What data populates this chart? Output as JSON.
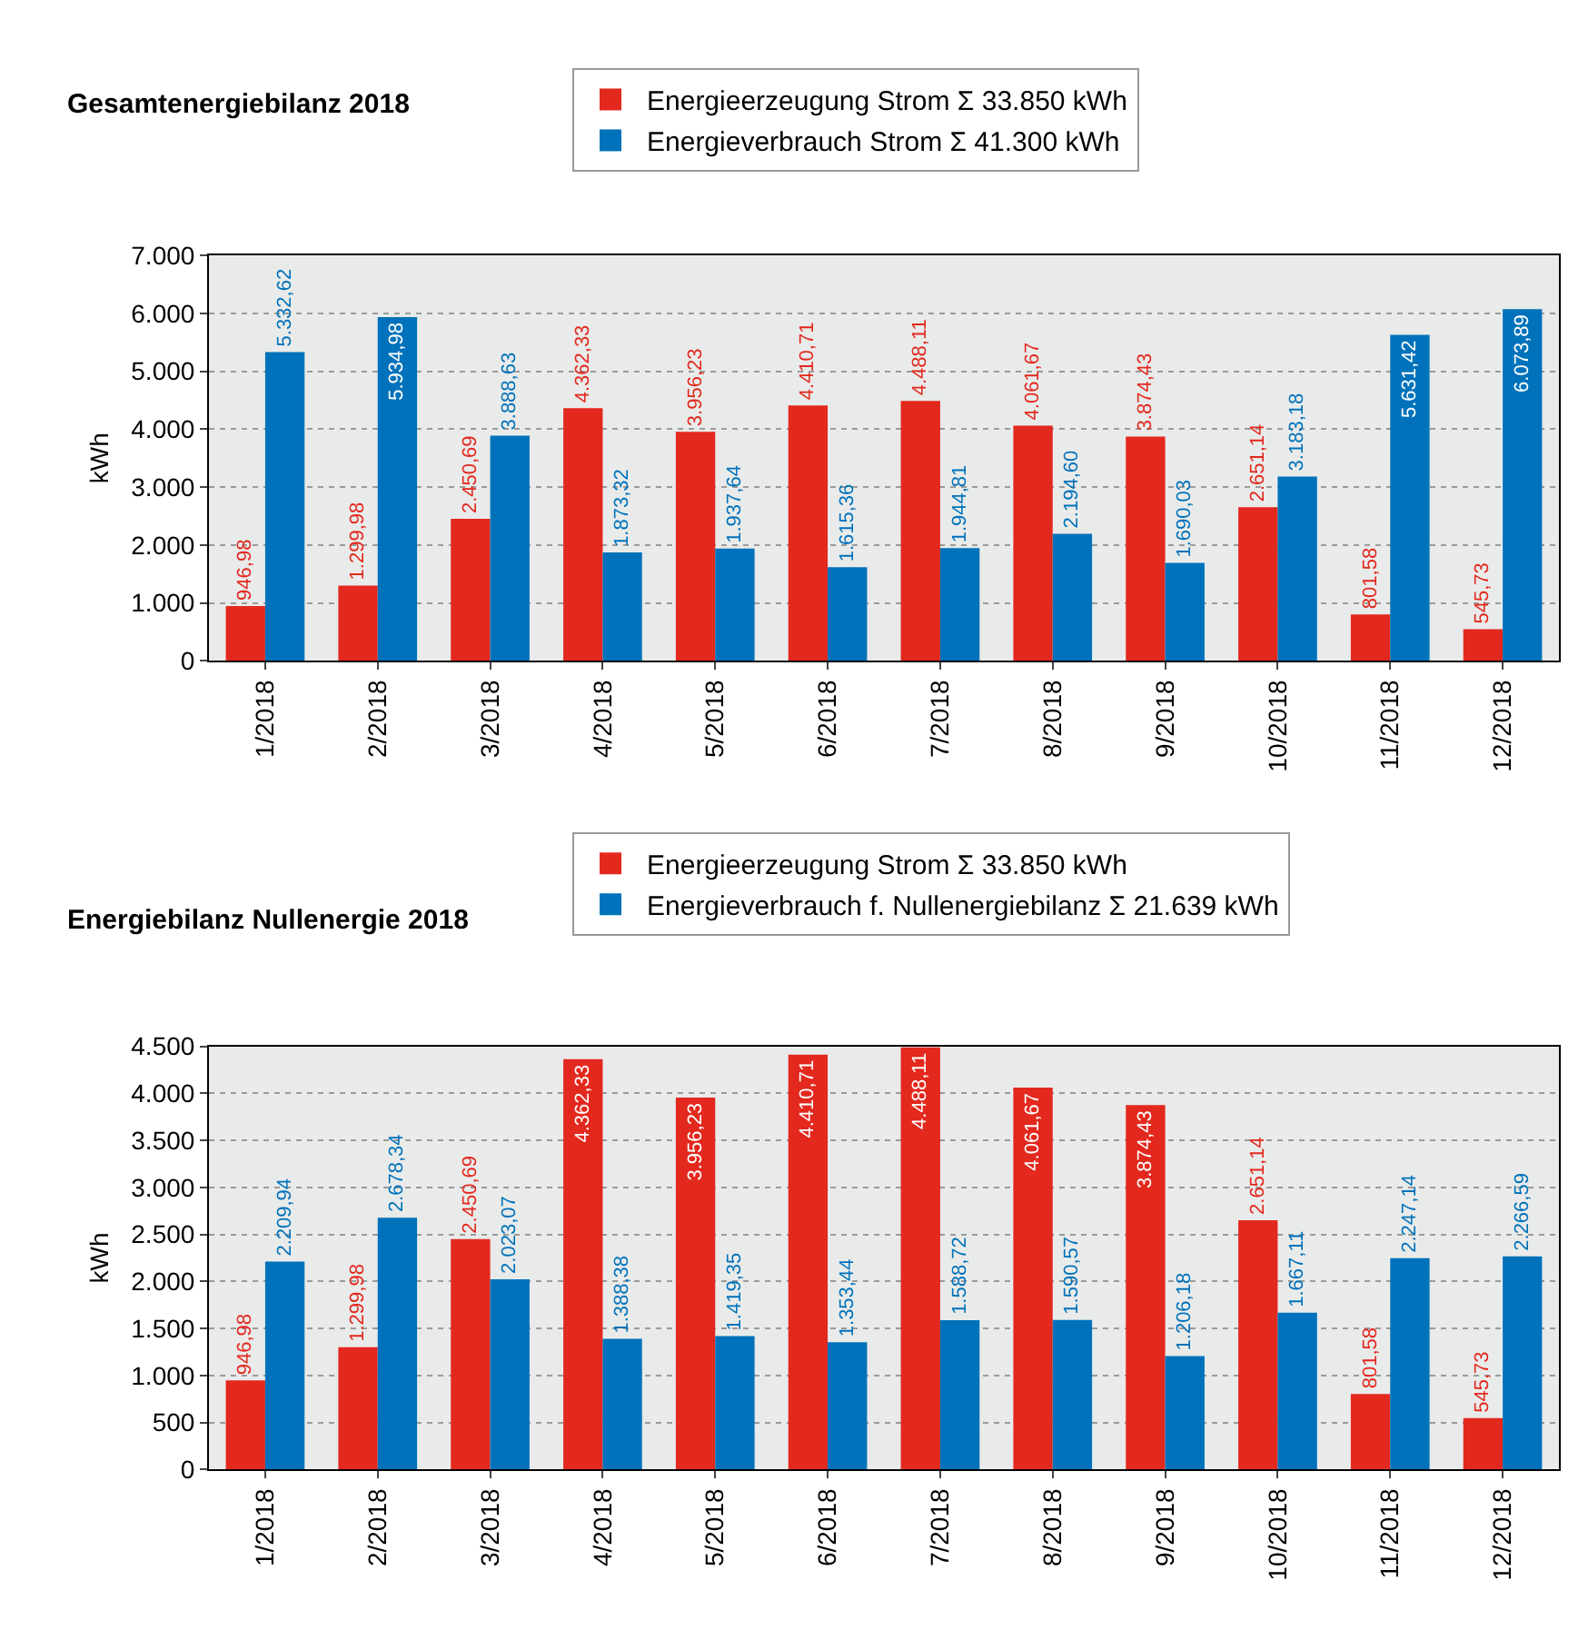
{
  "chart_data": [
    {
      "type": "bar",
      "title": "Gesamtenergiebilanz 2018",
      "ylabel": "kWh",
      "categories": [
        "1/2018",
        "2/2018",
        "3/2018",
        "4/2018",
        "5/2018",
        "6/2018",
        "7/2018",
        "8/2018",
        "9/2018",
        "10/2018",
        "11/2018",
        "12/2018"
      ],
      "series": [
        {
          "name": "Energieerzeugung Strom Σ 33.850 kWh",
          "color": "#e3281e",
          "values": [
            946.98,
            1299.98,
            2450.69,
            4362.33,
            3956.23,
            4410.71,
            4488.11,
            4061.67,
            3874.43,
            2651.14,
            801.58,
            545.73
          ],
          "value_labels": [
            "946,98",
            "1.299,98",
            "2.450,69",
            "4.362,33",
            "3.956,23",
            "4.410,71",
            "4.488,11",
            "4.061,67",
            "3.874,43",
            "2.651,14",
            "801,58",
            "545,73"
          ]
        },
        {
          "name": "Energieverbrauch Strom Σ 41.300 kWh",
          "color": "#0072bb",
          "values": [
            5332.62,
            5934.98,
            3888.63,
            1873.32,
            1937.64,
            1615.36,
            1944.81,
            2194.6,
            1690.03,
            3183.18,
            5631.42,
            6073.89
          ],
          "value_labels": [
            "5.332,62",
            "5.934,98",
            "3.888,63",
            "1.873,32",
            "1.937,64",
            "1.615,36",
            "1.944,81",
            "2.194,60",
            "1.690,03",
            "3.183,18",
            "5.631,42",
            "6.073,89"
          ]
        }
      ],
      "ylim": [
        0,
        7000
      ],
      "yticks": [
        0,
        {
          "value": 1000,
          "label": "1.000"
        },
        {
          "value": 2000,
          "label": "2.000"
        },
        {
          "value": 3000,
          "label": "3.000"
        },
        {
          "value": 4000,
          "label": "4.000"
        },
        {
          "value": 5000,
          "label": "5.000"
        },
        {
          "value": 6000,
          "label": "6.000"
        },
        {
          "value": 7000,
          "label": "7.000"
        }
      ],
      "grid": "y",
      "legend": "top"
    },
    {
      "type": "bar",
      "title": "Energiebilanz Nullenergie 2018",
      "ylabel": "kWh",
      "categories": [
        "1/2018",
        "2/2018",
        "3/2018",
        "4/2018",
        "5/2018",
        "6/2018",
        "7/2018",
        "8/2018",
        "9/2018",
        "10/2018",
        "11/2018",
        "12/2018"
      ],
      "series": [
        {
          "name": "Energieerzeugung Strom Σ 33.850 kWh",
          "color": "#e3281e",
          "values": [
            946.98,
            1299.98,
            2450.69,
            4362.33,
            3956.23,
            4410.71,
            4488.11,
            4061.67,
            3874.43,
            2651.14,
            801.58,
            545.73
          ],
          "value_labels": [
            "946,98",
            "1.299,98",
            "2.450,69",
            "4.362,33",
            "3.956,23",
            "4.410,71",
            "4.488,11",
            "4.061,67",
            "3.874,43",
            "2.651,14",
            "801,58",
            "545,73"
          ]
        },
        {
          "name": "Energieverbrauch f. Nullenergiebilanz Σ 21.639 kWh",
          "color": "#0072bb",
          "values": [
            2209.94,
            2678.34,
            2023.07,
            1388.38,
            1419.35,
            1353.44,
            1588.72,
            1590.57,
            1206.18,
            1667.11,
            2247.14,
            2266.59
          ],
          "value_labels": [
            "2.209,94",
            "2.678,34",
            "2.023,07",
            "1.388,38",
            "1.419,35",
            "1.353,44",
            "1.588,72",
            "1.590,57",
            "1.206,18",
            "1.667,11",
            "2.247,14",
            "2.266,59"
          ]
        }
      ],
      "ylim": [
        0,
        4500
      ],
      "yticks": [
        0,
        500,
        {
          "value": 1000,
          "label": "1.000"
        },
        {
          "value": 1500,
          "label": "1.500"
        },
        {
          "value": 2000,
          "label": "2.000"
        },
        {
          "value": 2500,
          "label": "2.500"
        },
        {
          "value": 3000,
          "label": "3.000"
        },
        {
          "value": 3500,
          "label": "3.500"
        },
        {
          "value": 4000,
          "label": "4.000"
        },
        {
          "value": 4500,
          "label": "4.500"
        }
      ],
      "grid": "y",
      "legend": "top"
    }
  ]
}
